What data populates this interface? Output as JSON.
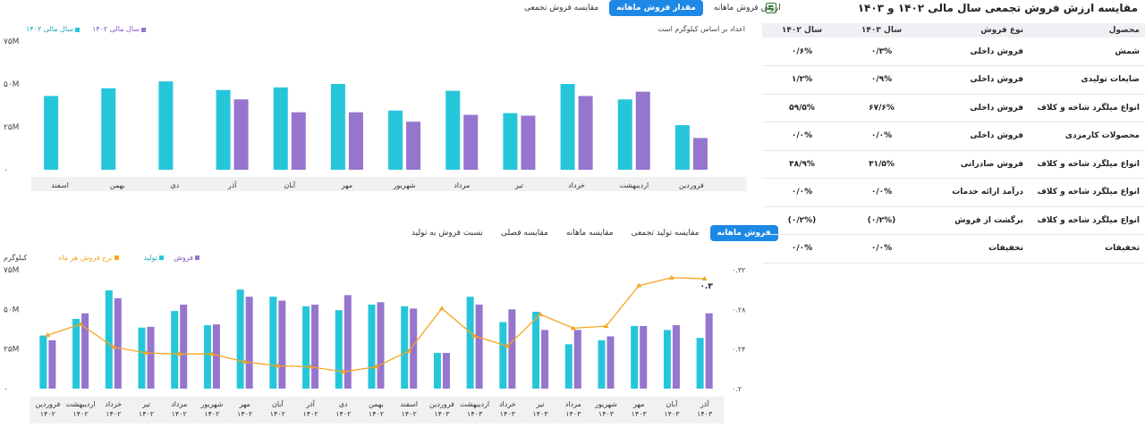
{
  "top_tabs": [
    {
      "label": "مقایسه فروش تجمعی",
      "active": false
    },
    {
      "label": "مقدار فروش ماهانه",
      "active": true
    },
    {
      "label": "ارزش فروش ماهانه",
      "active": false
    }
  ],
  "top_note": "اعداد بر اساس کیلوگرم است",
  "bottom_tabs": [
    {
      "label": "نسبت فروش به تولید",
      "active": false
    },
    {
      "label": "مقایسه فصلی",
      "active": false
    },
    {
      "label": "مقایسه ماهانه",
      "active": false
    },
    {
      "label": "مقایسه تولید تجمعی",
      "active": false
    },
    {
      "label": "فروش ماهانه",
      "active": true
    }
  ],
  "colors": {
    "teal": "#26c6da",
    "purple": "#9575cd",
    "orange": "#f5a623",
    "active_tab": "#1e88e5"
  },
  "chart_data": [
    {
      "type": "bar",
      "categories": [
        "فروردین",
        "اردیبهشت",
        "خرداد",
        "تیر",
        "مرداد",
        "شهریور",
        "مهر",
        "آبان",
        "آذر",
        "دی",
        "بهمن",
        "اسفند"
      ],
      "series": [
        {
          "name": "سال مالی ۱۴۰۳",
          "color": "#26c6da",
          "values": [
            26,
            41,
            50,
            33,
            46,
            34.5,
            50,
            48,
            46.5,
            51.5,
            47.5,
            43
          ]
        },
        {
          "name": "سال مالی ۱۴۰۲",
          "color": "#9575cd",
          "values": [
            18.5,
            45.5,
            43,
            31.5,
            32,
            28,
            33.5,
            33.5,
            41,
            null,
            null,
            null
          ]
        }
      ],
      "yticks": [
        "۰",
        "۲۵M",
        "۵۰M",
        "۷۵M"
      ],
      "ylim": [
        0,
        75
      ],
      "legend_position": "top-left"
    },
    {
      "type": "bar",
      "categories": [
        [
          "فروردین",
          "۱۴۰۲"
        ],
        [
          "اردیبهشت",
          "۱۴۰۲"
        ],
        [
          "خرداد",
          "۱۴۰۲"
        ],
        [
          "تیر",
          "۱۴۰۲"
        ],
        [
          "مرداد",
          "۱۴۰۲"
        ],
        [
          "شهریور",
          "۱۴۰۲"
        ],
        [
          "مهر",
          "۱۴۰۲"
        ],
        [
          "آبان",
          "۱۴۰۲"
        ],
        [
          "آذر",
          "۱۴۰۲"
        ],
        [
          "دی",
          "۱۴۰۲"
        ],
        [
          "بهمن",
          "۱۴۰۲"
        ],
        [
          "اسفند",
          "۱۴۰۲"
        ],
        [
          "فروردین",
          "۱۴۰۳"
        ],
        [
          "اردیبهشت",
          "۱۴۰۳"
        ],
        [
          "خرداد",
          "۱۴۰۳"
        ],
        [
          "تیر",
          "۱۴۰۳"
        ],
        [
          "مرداد",
          "۱۴۰۳"
        ],
        [
          "شهریور",
          "۱۴۰۳"
        ],
        [
          "مهر",
          "۱۴۰۳"
        ],
        [
          "آبان",
          "۱۴۰۳"
        ],
        [
          "آذر",
          "۱۴۰۳"
        ]
      ],
      "series": [
        {
          "name": "تولید",
          "color": "#26c6da",
          "values": [
            33.5,
            44,
            62,
            38.5,
            49,
            40,
            62.5,
            58,
            52,
            49.5,
            53,
            52,
            22.5,
            58,
            42,
            48.5,
            28,
            30.5,
            39.5,
            37,
            32
          ]
        },
        {
          "name": "فروش",
          "color": "#9575cd",
          "values": [
            30.5,
            47.5,
            57,
            39,
            53,
            40.5,
            58,
            55.5,
            53,
            59,
            54.5,
            50.5,
            22.5,
            53,
            50,
            37,
            37,
            33,
            39.5,
            40,
            47.5
          ]
        },
        {
          "name": "نرخ فروش هر ماه",
          "color": "#f5a623",
          "type": "line",
          "axis": "right",
          "values": [
            0.254,
            0.265,
            0.242,
            0.236,
            0.235,
            0.235,
            0.227,
            0.223,
            0.222,
            0.217,
            0.222,
            0.238,
            0.281,
            0.253,
            0.243,
            0.275,
            0.261,
            0.263,
            0.304,
            0.312,
            0.311
          ]
        }
      ],
      "yticks": [
        "۰",
        "۲۵M",
        "۵۰M",
        "۷۵M"
      ],
      "ylim": [
        0,
        75
      ],
      "ylabel": "کیلوگرم",
      "y2ticks": [
        "۰.۲",
        "۰.۲۴",
        "۰.۲۸",
        "۰.۳۲"
      ],
      "y2lim": [
        0.2,
        0.32
      ],
      "end_label": "۰.۳",
      "legend_position": "top-left"
    }
  ],
  "table": {
    "title": "مقایسه ارزش فروش تجمعی سال مالی ۱۴۰۲ و ۱۴۰۳",
    "headers": [
      "محصول",
      "نوع فروش",
      "سال ۱۴۰۳",
      "سال ۱۴۰۲"
    ],
    "rows": [
      [
        "شمش",
        "فروش داخلی",
        "۰/۳%",
        "۰/۶%"
      ],
      [
        "ضایعات تولیدی",
        "فروش داخلی",
        "۰/۹%",
        "۱/۲%"
      ],
      [
        "انواع میلگرد شاخه و کلاف",
        "فروش داخلی",
        "۶۷/۶%",
        "۵۹/۵%"
      ],
      [
        "محصولات کارمزدی",
        "فروش داخلی",
        "۰/۰%",
        "۰/۰%"
      ],
      [
        "انواع میلگرد شاخه و کلاف",
        "فروش صادراتی",
        "۳۱/۵%",
        "۳۸/۹%"
      ],
      [
        "انواع میلگرد شاخه و کلاف",
        "درآمد ارائه خدمات",
        "۰/۰%",
        "۰/۰%"
      ],
      [
        "انواع میلگرد شاخه و کلاف",
        "برگشت از فروش",
        "(۰/۲%)",
        "(۰/۲%)"
      ],
      [
        "تخفیفات",
        "تخفیفات",
        "۰/۰%",
        "۰/۰%"
      ]
    ]
  }
}
